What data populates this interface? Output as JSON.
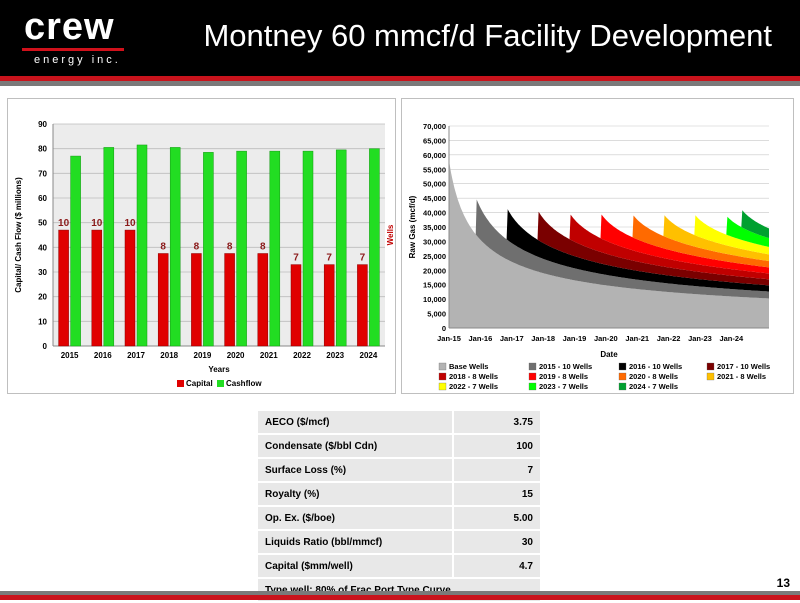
{
  "header": {
    "title": "Montney 60 mmcf/d Facility Development",
    "logo_word": "crew",
    "logo_sub": "energy inc."
  },
  "colors": {
    "brand_red": "#d0111b",
    "capital": "#e00000",
    "cashflow": "#22dd22"
  },
  "page_number": "13",
  "chart_data": [
    {
      "type": "bar",
      "categories": [
        "2015",
        "2016",
        "2017",
        "2018",
        "2019",
        "2020",
        "2021",
        "2022",
        "2023",
        "2024"
      ],
      "series": [
        {
          "name": "Capital",
          "values": [
            47,
            47,
            47,
            37.5,
            37.5,
            37.5,
            37.5,
            33,
            33,
            33
          ],
          "labels": [
            "10",
            "10",
            "10",
            "8",
            "8",
            "8",
            "8",
            "7",
            "7",
            "7"
          ],
          "color": "#e00000"
        },
        {
          "name": "Cashflow",
          "values": [
            77,
            80.5,
            81.5,
            80.5,
            78.5,
            79,
            79,
            79,
            79.5,
            80
          ],
          "color": "#22dd22"
        }
      ],
      "xlabel": "Years",
      "ylabel": "Capital/ Cash Flow ($ millions)",
      "y2label": "Wells",
      "ylim": [
        0,
        90
      ],
      "yticks": [
        "0",
        "10",
        "20",
        "30",
        "40",
        "50",
        "60",
        "70",
        "80",
        "90"
      ],
      "grid": true,
      "legend": "bottom"
    },
    {
      "type": "area",
      "stacked": true,
      "x": [
        "Jan-15",
        "Jan-16",
        "Jan-17",
        "Jan-18",
        "Jan-19",
        "Jan-20",
        "Jan-21",
        "Jan-22",
        "Jan-23",
        "Jan-24"
      ],
      "xlabel": "Date",
      "ylabel": "Raw Gas (mcf/d)",
      "ylim": [
        0,
        70000
      ],
      "yticks": [
        "0",
        "5,000",
        "10,000",
        "15,000",
        "20,000",
        "25,000",
        "30,000",
        "35,000",
        "40,000",
        "45,000",
        "50,000",
        "55,000",
        "60,000",
        "65,000",
        "70,000"
      ],
      "plateau": 60000,
      "series": [
        {
          "name": "Base Wells",
          "color": "#b3b3b3",
          "start": 0.0,
          "q0": 58000
        },
        {
          "name": "2015 - 10 Wells",
          "color": "#6f6f6f",
          "start": 0.85,
          "q0": 13000
        },
        {
          "name": "2016 - 10 Wells",
          "color": "#000000",
          "start": 1.85,
          "q0": 11000
        },
        {
          "name": "2017 - 10 Wells",
          "color": "#7a0000",
          "start": 2.85,
          "q0": 10000
        },
        {
          "name": "2018 - 8 Wells",
          "color": "#c00000",
          "start": 3.85,
          "q0": 9000
        },
        {
          "name": "2019 - 8 Wells",
          "color": "#ff0000",
          "start": 4.85,
          "q0": 8500
        },
        {
          "name": "2020 - 8 Wells",
          "color": "#ff6a00",
          "start": 5.85,
          "q0": 8000
        },
        {
          "name": "2021 - 8 Wells",
          "color": "#ffc000",
          "start": 6.85,
          "q0": 7500
        },
        {
          "name": "2022 - 7 Wells",
          "color": "#ffff00",
          "start": 7.85,
          "q0": 7000
        },
        {
          "name": "2023 - 7 Wells",
          "color": "#00ff00",
          "start": 8.85,
          "q0": 6500
        },
        {
          "name": "2024 - 7 Wells",
          "color": "#00a030",
          "start": 9.35,
          "q0": 6000
        }
      ],
      "legend": "bottom"
    }
  ],
  "assumptions": {
    "rows": [
      {
        "label": "AECO ($/mcf)",
        "value": "3.75"
      },
      {
        "label": "Condensate ($/bbl Cdn)",
        "value": "100"
      },
      {
        "label": "Surface Loss (%)",
        "value": "7"
      },
      {
        "label": "Royalty (%)",
        "value": "15"
      },
      {
        "label": "Op. Ex. ($/boe)",
        "value": "5.00"
      },
      {
        "label": "Liquids Ratio (bbl/mmcf)",
        "value": "30"
      },
      {
        "label": "Capital ($mm/well)",
        "value": "4.7"
      }
    ],
    "footnote": "Type well:  80% of Frac Port Type Curve"
  }
}
